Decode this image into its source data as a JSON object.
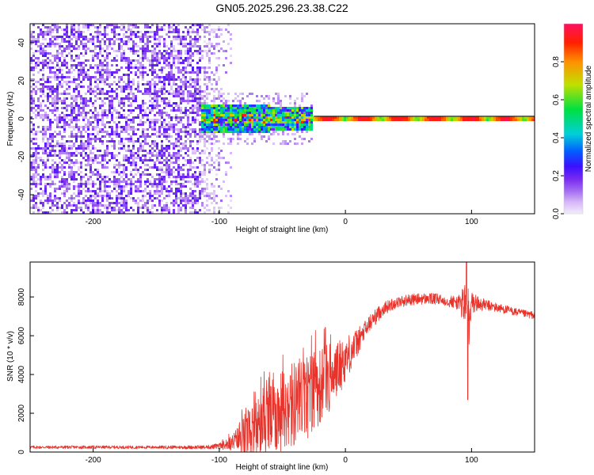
{
  "title": "GN05.2025.296.23.38.C22",
  "colors": {
    "snr_line": "#e8322a",
    "axis": "#000000",
    "colorbar_stops": [
      "#f2ecfb",
      "#d8b8f8",
      "#a36df0",
      "#7a2df0",
      "#3a10ff",
      "#0060ff",
      "#00d0d8",
      "#00e040",
      "#c0e000",
      "#ff9000",
      "#ff2000",
      "#ff1060"
    ]
  },
  "chart_data": [
    {
      "type": "heatmap",
      "name": "spectrogram",
      "title": "GN05.2025.296.23.38.C22",
      "xlabel": "Height of straight line (km)",
      "ylabel": "Frequency (Hz)",
      "xlim": [
        -250,
        150
      ],
      "ylim": [
        -50,
        50
      ],
      "xticks": [
        -200,
        -100,
        0,
        100
      ],
      "xtick_labels": [
        "-200",
        "-100",
        "0",
        "100"
      ],
      "yticks": [
        -40,
        -20,
        0,
        20,
        40
      ],
      "ytick_labels": [
        "-40",
        "-20",
        "0",
        "20",
        "40"
      ],
      "colorbar": {
        "label": "Normalized spectral amplitude",
        "range": [
          0,
          1
        ],
        "ticks": [
          0.0,
          0.2,
          0.4,
          0.6,
          0.8
        ],
        "tick_labels": [
          "0.0",
          "0.2",
          "0.4",
          "0.6",
          "0.8"
        ]
      },
      "regions": [
        {
          "description": "broadband noise",
          "x_range": [
            -250,
            -90
          ],
          "freq_range": [
            -50,
            50
          ],
          "amplitude_approx": 0.3
        },
        {
          "description": "scattered signal",
          "x_range": [
            -115,
            -25
          ],
          "freq_range": [
            -8,
            8
          ],
          "amplitude_approx": 0.5
        },
        {
          "description": "coherent carrier",
          "x_range": [
            -25,
            150
          ],
          "freq_range": [
            -2,
            2
          ],
          "amplitude_approx": 0.9
        }
      ]
    },
    {
      "type": "line",
      "name": "snr",
      "xlabel": "Height of straight line (km)",
      "ylabel": "SNR (10 * v/v)",
      "xlim": [
        -250,
        150
      ],
      "ylim": [
        0,
        9800
      ],
      "xticks": [
        -200,
        -100,
        0,
        100
      ],
      "xtick_labels": [
        "-200",
        "-100",
        "0",
        "100"
      ],
      "yticks": [
        0,
        2000,
        4000,
        6000,
        8000
      ],
      "ytick_labels": [
        "0",
        "2000",
        "4000",
        "6000",
        "8000"
      ],
      "envelope_x": [
        -250,
        -200,
        -150,
        -110,
        -100,
        -90,
        -80,
        -70,
        -60,
        -50,
        -40,
        -30,
        -20,
        -10,
        0,
        10,
        20,
        30,
        40,
        50,
        60,
        70,
        80,
        90,
        96,
        98,
        100,
        110,
        120,
        130,
        140,
        150
      ],
      "envelope_mean": [
        250,
        250,
        250,
        250,
        300,
        450,
        800,
        1200,
        1700,
        2100,
        2500,
        2900,
        3400,
        4000,
        4800,
        5700,
        6700,
        7400,
        7700,
        7850,
        7900,
        7900,
        7800,
        7700,
        7600,
        6000,
        7700,
        7600,
        7450,
        7300,
        7150,
        7050
      ],
      "envelope_noise": [
        80,
        80,
        80,
        100,
        150,
        400,
        1200,
        1600,
        1900,
        2100,
        2300,
        2300,
        2000,
        1700,
        1200,
        700,
        450,
        350,
        300,
        300,
        300,
        300,
        280,
        400,
        1500,
        2500,
        600,
        300,
        250,
        220,
        200,
        200
      ],
      "annotations": [
        {
          "x": 96,
          "y": 9800,
          "note": "spike"
        },
        {
          "x": 97,
          "y": 2700,
          "note": "dip"
        }
      ]
    }
  ]
}
